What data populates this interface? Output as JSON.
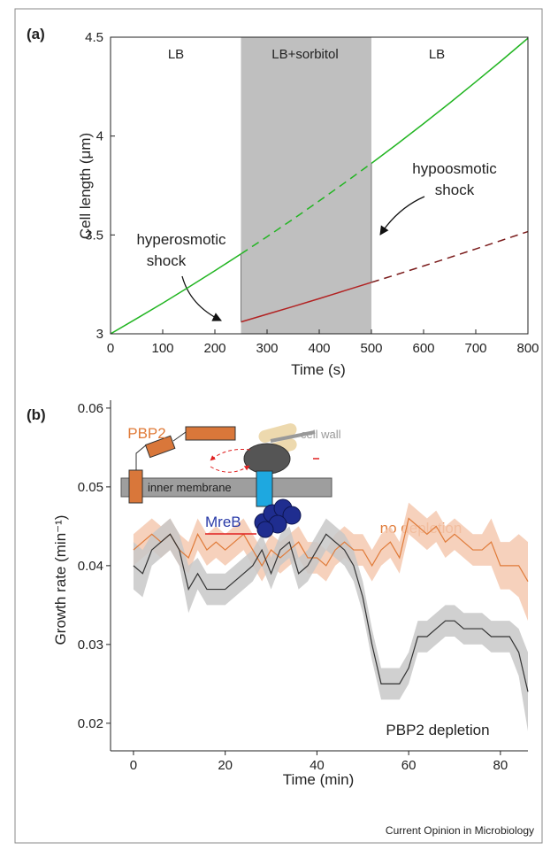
{
  "chart_data": [
    {
      "type": "line",
      "panel_label": "(a)",
      "x_label": "Time (s)",
      "y_label": "Cell length (μm)",
      "xlim": [
        0,
        800
      ],
      "ylim": [
        3,
        4.5
      ],
      "xticks": [
        0,
        100,
        200,
        300,
        400,
        500,
        600,
        700,
        800
      ],
      "yticks": [
        3,
        3.5,
        4,
        4.5
      ],
      "shade": [
        250,
        500
      ],
      "shade_color": "#bfbfbf",
      "region_labels": [
        "LB",
        "LB+sorbitol",
        "LB"
      ],
      "annotations": [
        [
          "hyperosmotic",
          "shock"
        ],
        [
          "hypoosmotic",
          "shock"
        ]
      ],
      "grid": false,
      "series": [
        {
          "color": "#22b522",
          "dash": false,
          "x": [
            0,
            50,
            100,
            150,
            200,
            250
          ],
          "values": [
            3,
            3.077,
            3.155,
            3.236,
            3.319,
            3.404
          ]
        },
        {
          "color": "#22b522",
          "dash": true,
          "x": [
            250,
            300,
            350,
            400,
            450,
            500
          ],
          "values": [
            3.404,
            3.491,
            3.58,
            3.672,
            3.766,
            3.862
          ]
        },
        {
          "color": "#22b522",
          "dash": false,
          "x": [
            500,
            550,
            600,
            650,
            700,
            750,
            800
          ],
          "values": [
            3.862,
            3.961,
            4.063,
            4.167,
            4.274,
            4.383,
            4.495
          ]
        },
        {
          "color": "#b22222",
          "dash": false,
          "x": [
            250,
            300,
            350,
            400,
            450,
            500
          ],
          "values": [
            3.06,
            3.099,
            3.138,
            3.178,
            3.219,
            3.26
          ]
        },
        {
          "color": "#7a1a1a",
          "dash": true,
          "x": [
            500,
            550,
            600,
            650,
            700,
            750,
            800
          ],
          "values": [
            3.26,
            3.301,
            3.343,
            3.386,
            3.429,
            3.473,
            3.517
          ]
        },
        {
          "color": "#777777",
          "dash": false,
          "x": [
            250,
            250
          ],
          "values": [
            3.404,
            3.06
          ]
        },
        {
          "color": "#777777",
          "dash": false,
          "x": [
            500,
            500
          ],
          "values": [
            3.26,
            3.862
          ]
        }
      ]
    },
    {
      "type": "band-line",
      "panel_label": "(b)",
      "x_label": "Time (min)",
      "y_label": "Growth rate (min⁻¹)",
      "xlim": [
        -5,
        86
      ],
      "ylim": [
        0.0165,
        0.061
      ],
      "xticks": [
        0,
        20,
        40,
        60,
        80
      ],
      "yticks": [
        0.02,
        0.03,
        0.04,
        0.05,
        0.06
      ],
      "grid": false,
      "inset_labels": [
        "PBP2",
        "cell wall",
        "inner membrane",
        "MreB"
      ],
      "x": [
        0,
        2,
        4,
        6,
        8,
        10,
        12,
        14,
        16,
        18,
        20,
        22,
        24,
        26,
        28,
        30,
        32,
        34,
        36,
        38,
        40,
        42,
        44,
        46,
        48,
        50,
        52,
        54,
        56,
        58,
        60,
        62,
        64,
        66,
        68,
        70,
        72,
        74,
        76,
        78,
        80,
        82,
        84,
        86
      ],
      "series": [
        {
          "name": "no depletion",
          "color": "#e07b39",
          "band_color": "#f5c9b0",
          "values": [
            0.042,
            0.043,
            0.044,
            0.043,
            0.044,
            0.042,
            0.041,
            0.044,
            0.042,
            0.043,
            0.042,
            0.043,
            0.044,
            0.042,
            0.04,
            0.042,
            0.041,
            0.042,
            0.043,
            0.041,
            0.041,
            0.04,
            0.042,
            0.043,
            0.042,
            0.042,
            0.04,
            0.042,
            0.043,
            0.041,
            0.046,
            0.045,
            0.044,
            0.045,
            0.043,
            0.044,
            0.043,
            0.042,
            0.042,
            0.043,
            0.04,
            0.04,
            0.04,
            0.038
          ],
          "errors": [
            0.002,
            0.002,
            0.002,
            0.002,
            0.002,
            0.002,
            0.002,
            0.002,
            0.002,
            0.002,
            0.002,
            0.002,
            0.002,
            0.002,
            0.002,
            0.002,
            0.002,
            0.002,
            0.002,
            0.002,
            0.002,
            0.002,
            0.002,
            0.002,
            0.002,
            0.002,
            0.002,
            0.002,
            0.002,
            0.002,
            0.002,
            0.002,
            0.002,
            0.002,
            0.002,
            0.002,
            0.002,
            0.002,
            0.002,
            0.003,
            0.003,
            0.003,
            0.004,
            0.005
          ]
        },
        {
          "name": "PBP2 depletion",
          "color": "#333333",
          "band_color": "#c8c8c8",
          "values": [
            0.04,
            0.039,
            0.042,
            0.043,
            0.044,
            0.042,
            0.037,
            0.039,
            0.037,
            0.037,
            0.037,
            0.038,
            0.039,
            0.04,
            0.042,
            0.039,
            0.042,
            0.043,
            0.039,
            0.04,
            0.042,
            0.044,
            0.043,
            0.042,
            0.04,
            0.036,
            0.03,
            0.025,
            0.025,
            0.025,
            0.027,
            0.031,
            0.031,
            0.032,
            0.033,
            0.033,
            0.032,
            0.032,
            0.032,
            0.031,
            0.031,
            0.031,
            0.029,
            0.024
          ],
          "errors": [
            0.003,
            0.003,
            0.002,
            0.002,
            0.002,
            0.002,
            0.003,
            0.002,
            0.002,
            0.002,
            0.002,
            0.002,
            0.002,
            0.002,
            0.002,
            0.002,
            0.002,
            0.002,
            0.002,
            0.002,
            0.002,
            0.002,
            0.002,
            0.002,
            0.002,
            0.002,
            0.002,
            0.002,
            0.002,
            0.002,
            0.002,
            0.002,
            0.002,
            0.002,
            0.002,
            0.002,
            0.002,
            0.002,
            0.002,
            0.002,
            0.002,
            0.002,
            0.003,
            0.005
          ]
        }
      ]
    }
  ],
  "credit": "Current Opinion in Microbiology"
}
